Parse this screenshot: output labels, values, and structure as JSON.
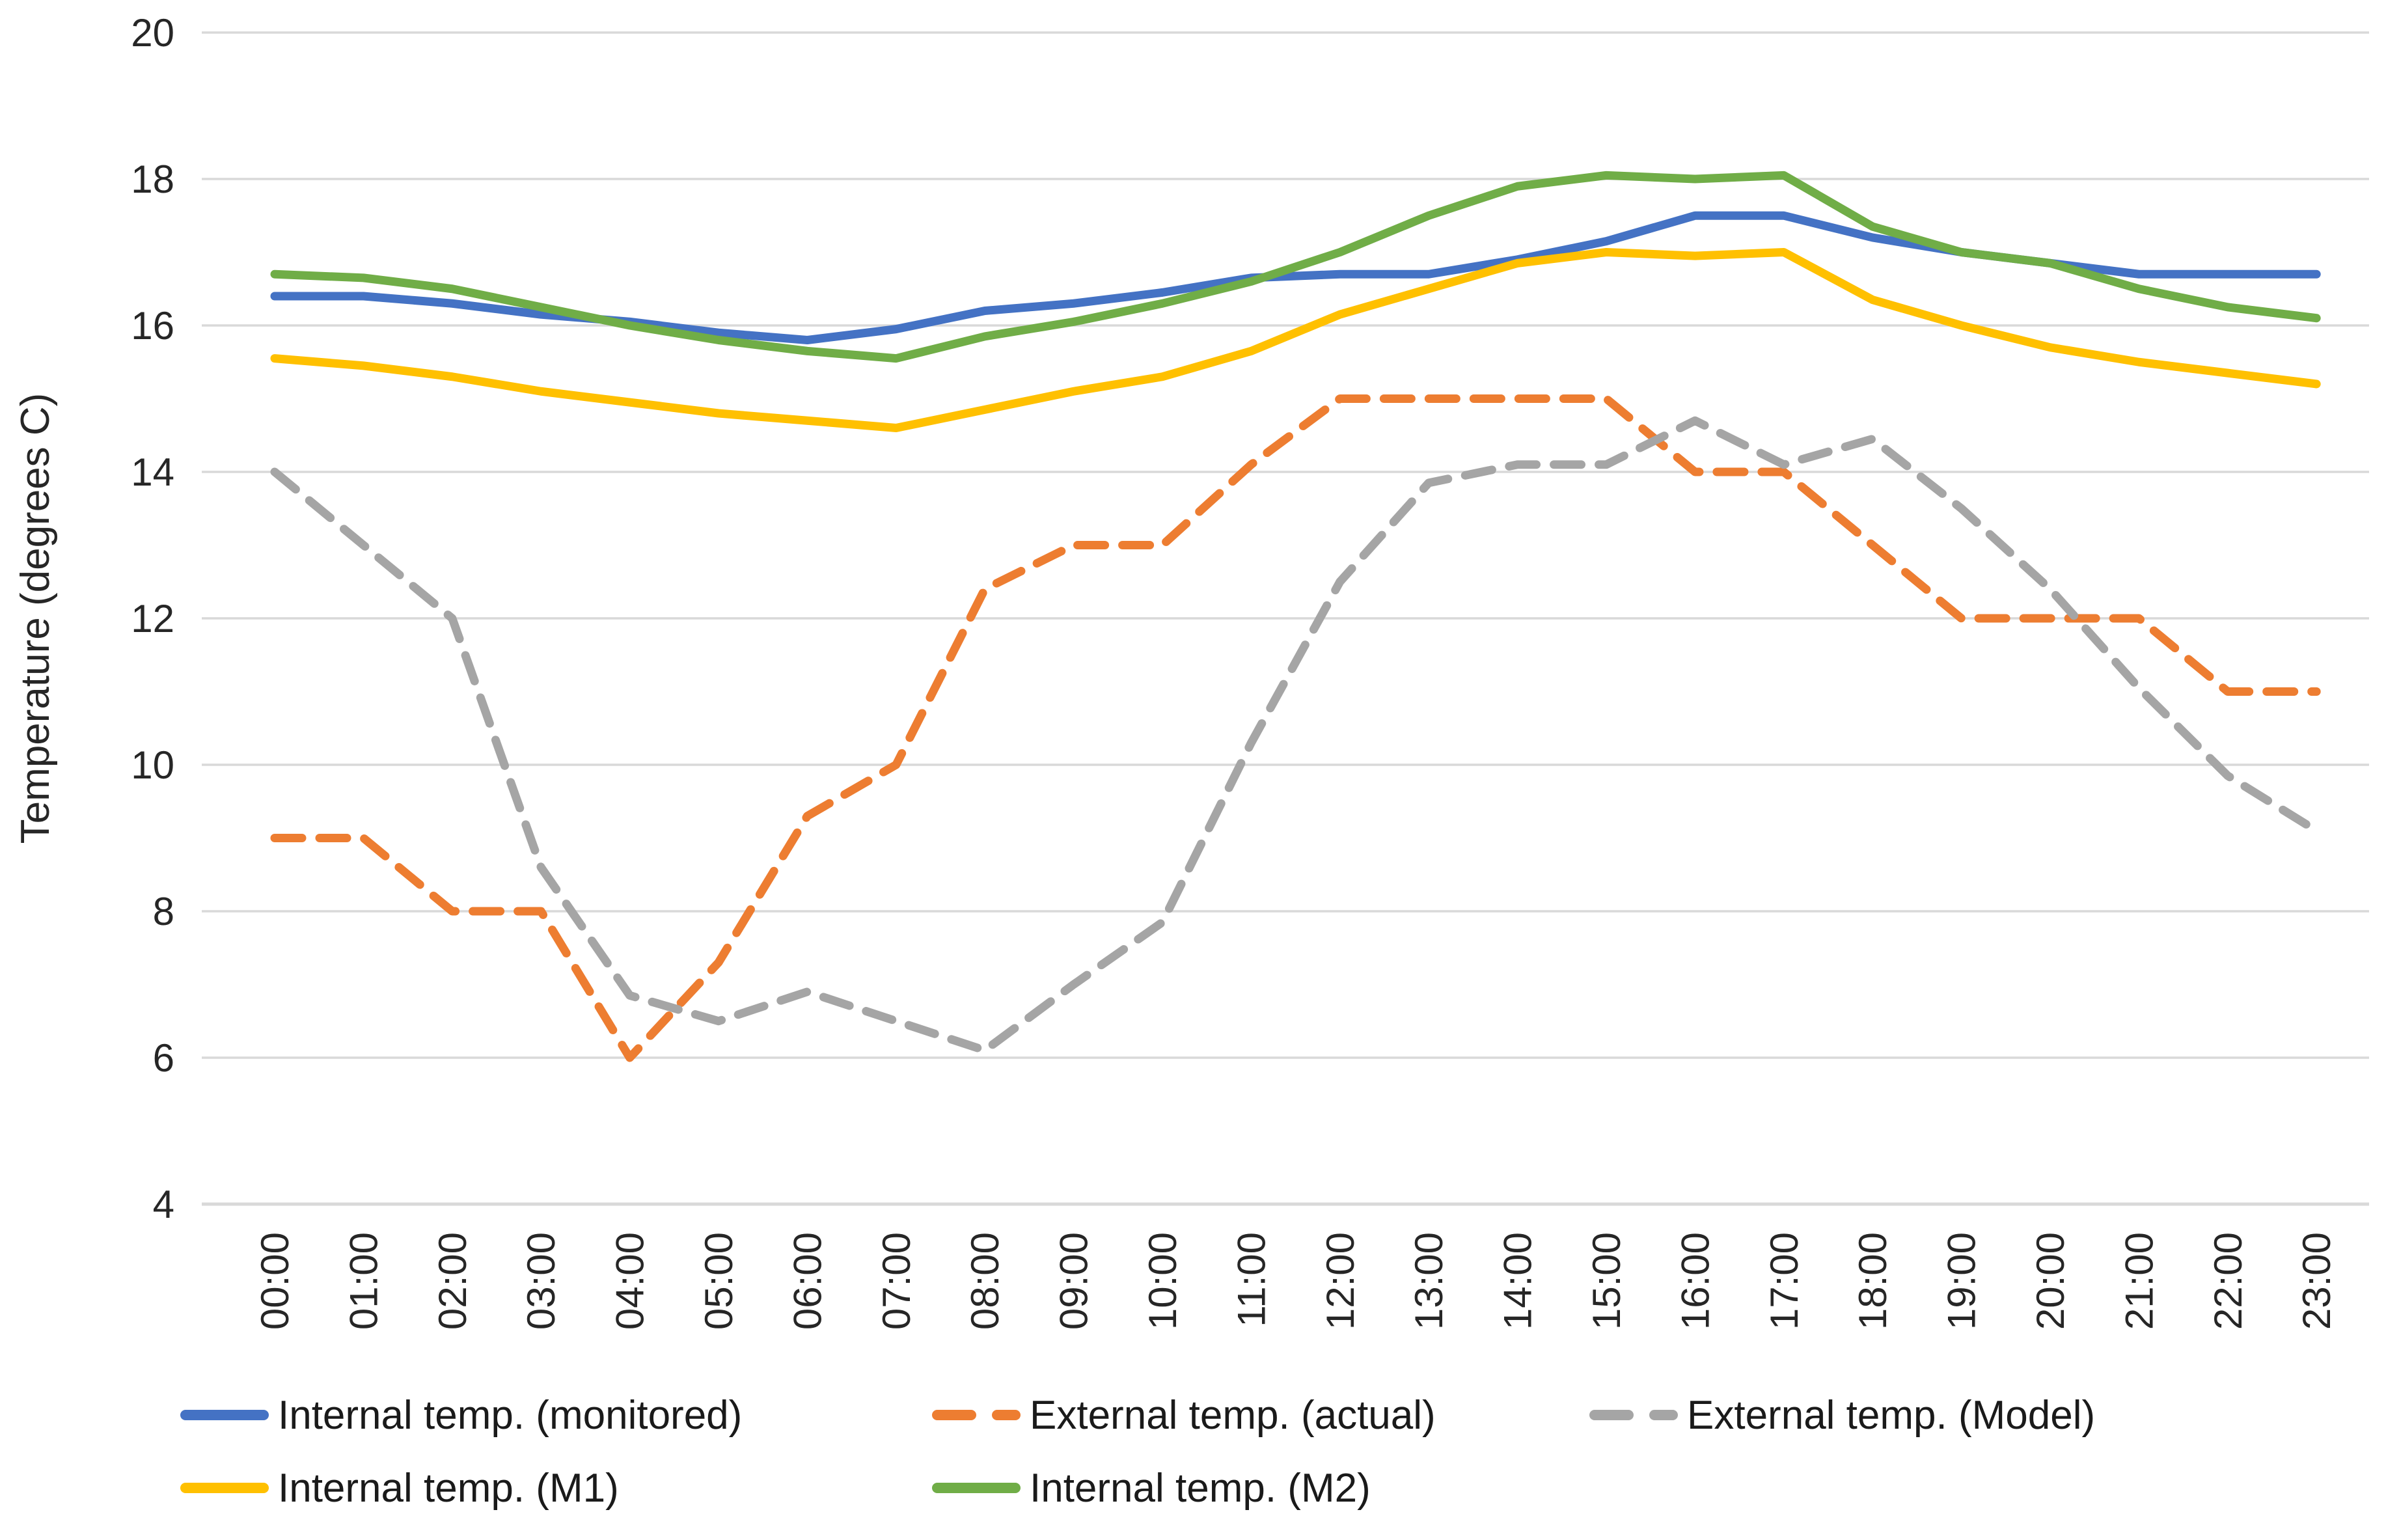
{
  "chart_data": {
    "type": "line",
    "title": "",
    "xlabel": "",
    "ylabel": "Temperature (degrees C)",
    "ylim": [
      4,
      20
    ],
    "ytick_step": 2,
    "yticks": [
      4,
      6,
      8,
      10,
      12,
      14,
      16,
      18,
      20
    ],
    "grid": true,
    "legend_position": "bottom",
    "categories": [
      "00:00",
      "01:00",
      "02:00",
      "03:00",
      "04:00",
      "05:00",
      "06:00",
      "07:00",
      "08:00",
      "09:00",
      "10:00",
      "11:00",
      "12:00",
      "13:00",
      "14:00",
      "15:00",
      "16:00",
      "17:00",
      "18:00",
      "19:00",
      "20:00",
      "21:00",
      "22:00",
      "23:00"
    ],
    "series": [
      {
        "name": "Internal temp. (monitored)",
        "color": "#4472C4",
        "style": "solid",
        "values": [
          16.4,
          16.4,
          16.3,
          16.15,
          16.05,
          15.9,
          15.8,
          15.95,
          16.2,
          16.3,
          16.45,
          16.65,
          16.7,
          16.7,
          16.9,
          17.15,
          17.5,
          17.5,
          17.2,
          17.0,
          16.85,
          16.7,
          16.7,
          16.7
        ]
      },
      {
        "name": "External temp. (actual)",
        "color": "#ED7D31",
        "style": "dashed",
        "values": [
          9,
          9,
          8,
          8,
          6,
          7.3,
          9.3,
          10,
          12.4,
          13,
          13,
          14.1,
          15,
          15,
          15,
          15,
          14,
          14,
          13,
          12,
          12,
          12,
          11,
          11
        ]
      },
      {
        "name": "External temp. (Model)",
        "color": "#A5A5A5",
        "style": "dashed",
        "values": [
          14,
          13,
          12,
          8.6,
          6.85,
          6.5,
          6.9,
          6.5,
          6.1,
          7.0,
          7.85,
          10.3,
          12.5,
          13.85,
          14.1,
          14.1,
          14.7,
          14.1,
          14.45,
          13.5,
          12.4,
          11.05,
          9.85,
          9.1
        ]
      },
      {
        "name": "Internal temp. (M1)",
        "color": "#FFC000",
        "style": "solid",
        "values": [
          15.55,
          15.45,
          15.3,
          15.1,
          14.95,
          14.8,
          14.7,
          14.6,
          14.85,
          15.1,
          15.3,
          15.65,
          16.15,
          16.5,
          16.85,
          17.0,
          16.95,
          17.0,
          16.35,
          16.0,
          15.7,
          15.5,
          15.35,
          15.2
        ]
      },
      {
        "name": "Internal temp. (M2)",
        "color": "#70AD47",
        "style": "solid",
        "values": [
          16.7,
          16.65,
          16.5,
          16.25,
          16.0,
          15.8,
          15.65,
          15.55,
          15.85,
          16.05,
          16.3,
          16.6,
          17.0,
          17.5,
          17.9,
          18.05,
          18.0,
          18.05,
          17.35,
          17.0,
          16.85,
          16.5,
          16.25,
          16.1
        ]
      }
    ],
    "legend_rows": [
      [
        0,
        1,
        2
      ],
      [
        3,
        4
      ]
    ],
    "colors": {
      "gridline": "#D9D9D9",
      "axis_line": "#D9D9D9",
      "tick_text": "#262626",
      "background": "#FFFFFF"
    }
  },
  "ui": {
    "y_axis_title": "Temperature (degrees C)"
  }
}
